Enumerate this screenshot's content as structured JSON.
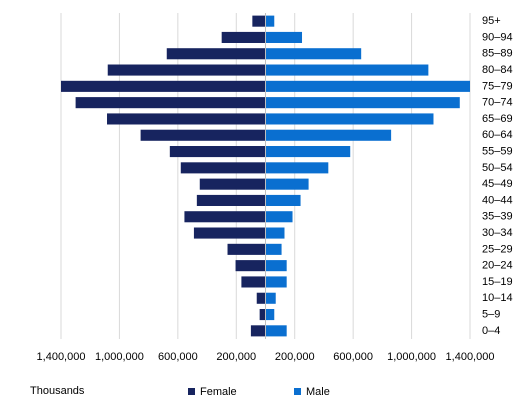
{
  "chart_data": {
    "type": "pyramid",
    "x_label": "Thousands",
    "categories": [
      "95+",
      "90–94",
      "85–89",
      "80–84",
      "75–79",
      "70–74",
      "65–69",
      "60–64",
      "55–59",
      "50–54",
      "45–49",
      "40–44",
      "35–39",
      "30–34",
      "25–29",
      "20–24",
      "15–19",
      "10–14",
      "5–9",
      "0–4"
    ],
    "series": [
      {
        "name": "Female",
        "color": "#17245f",
        "values": [
          -90000,
          -300000,
          -676000,
          -1080000,
          -1400000,
          -1300000,
          -1085000,
          -855000,
          -655000,
          -580000,
          -450000,
          -470000,
          -555000,
          -490000,
          -260000,
          -205000,
          -165000,
          -60000,
          -40000,
          -100000
        ]
      },
      {
        "name": "Male",
        "color": "#0a6fd0",
        "values": [
          60000,
          250000,
          655000,
          1115000,
          1400000,
          1330000,
          1150000,
          860000,
          580000,
          430000,
          295000,
          240000,
          185000,
          130000,
          110000,
          145000,
          145000,
          70000,
          60000,
          145000
        ]
      }
    ],
    "xlim": [
      -1400000,
      1400000
    ],
    "xticks": [
      {
        "value": -1400000,
        "label": "1,400,000"
      },
      {
        "value": -1000000,
        "label": "1,000,000"
      },
      {
        "value": -600000,
        "label": "600,000"
      },
      {
        "value": -200000,
        "label": "200,000"
      },
      {
        "value": 200000,
        "label": "200,000"
      },
      {
        "value": 600000,
        "label": "600,000"
      },
      {
        "value": 1000000,
        "label": "1,000,000"
      },
      {
        "value": 1400000,
        "label": "1,400,000"
      }
    ],
    "grid": true,
    "legend": "bottom"
  }
}
